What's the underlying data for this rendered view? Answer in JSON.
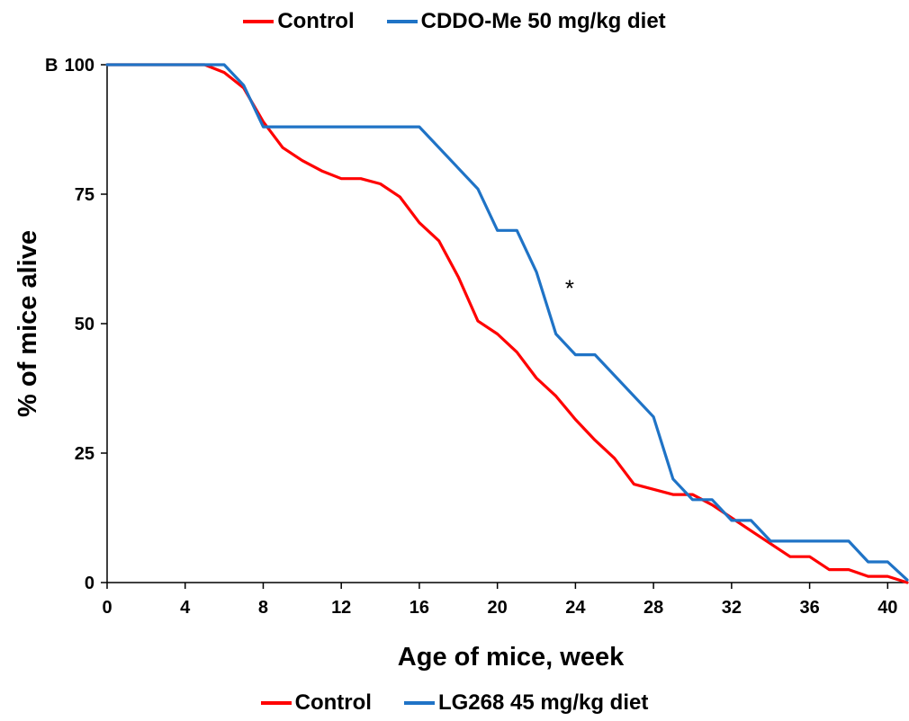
{
  "panel_label": "B",
  "legend_top": [
    {
      "label": "Control",
      "color": "#ff0000"
    },
    {
      "label": "CDDO-Me 50 mg/kg diet",
      "color": "#1f73c6"
    }
  ],
  "legend_bottom": [
    {
      "label": "Control",
      "color": "#ff0000"
    },
    {
      "label": "LG268 45 mg/kg diet",
      "color": "#1f73c6"
    }
  ],
  "chart_data": {
    "type": "line",
    "xlabel": "Age of mice, week",
    "ylabel": "% of mice alive",
    "xlim": [
      0,
      41
    ],
    "ylim": [
      0,
      100
    ],
    "xticks": [
      0,
      4,
      8,
      12,
      16,
      20,
      24,
      28,
      32,
      36,
      40
    ],
    "yticks": [
      0,
      25,
      50,
      75,
      100
    ],
    "grid": false,
    "annotations": [
      {
        "text": "*",
        "x": 23.7,
        "y": 57
      }
    ],
    "series": [
      {
        "name": "Control",
        "color": "#ff0000",
        "x": [
          0,
          5,
          6,
          7,
          8,
          9,
          10,
          11,
          12,
          13,
          14,
          15,
          16,
          17,
          18,
          19,
          20,
          21,
          22,
          23,
          24,
          25,
          26,
          27,
          28,
          29,
          30,
          31,
          32,
          33,
          34,
          35,
          36,
          37,
          38,
          39,
          40,
          41
        ],
        "y": [
          100,
          100,
          98.5,
          95.5,
          89,
          84,
          81.5,
          79.5,
          78,
          78,
          77,
          74.5,
          69.5,
          66,
          59,
          50.5,
          48,
          44.5,
          39.5,
          36,
          31.5,
          27.5,
          24,
          19,
          18,
          17,
          17,
          15,
          12.5,
          10,
          7.5,
          5,
          5,
          2.5,
          2.5,
          1.2,
          1.2,
          0
        ]
      },
      {
        "name": "CDDO-Me 50 mg/kg diet",
        "color": "#1f73c6",
        "x": [
          0,
          6,
          7,
          8,
          16,
          19,
          20,
          21,
          22,
          23,
          24,
          25,
          28,
          29,
          30,
          31,
          32,
          33,
          34,
          38,
          39,
          40,
          41
        ],
        "y": [
          100,
          100,
          96,
          88,
          88,
          76,
          68,
          68,
          60,
          48,
          44,
          44,
          32,
          20,
          16,
          16,
          12,
          12,
          8,
          8,
          4,
          4,
          0.5
        ]
      }
    ]
  }
}
